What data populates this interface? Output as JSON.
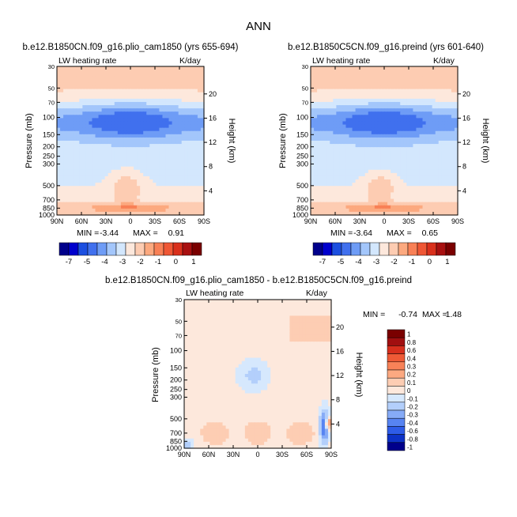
{
  "figure": {
    "title": "ANN"
  },
  "colors": {
    "abs_scale": [
      "#00008b",
      "#0000cd",
      "#1c4fe0",
      "#4070ee",
      "#6e9cf6",
      "#a3c6fb",
      "#d3e7fd",
      "#fde8dc",
      "#fdccb2",
      "#fca97f",
      "#f88056",
      "#ef5735",
      "#d9301c",
      "#a81010",
      "#7a0000"
    ],
    "diff_scale": [
      "#00008b",
      "#0d32c7",
      "#2e5ce8",
      "#5784f2",
      "#86abf7",
      "#b3cffb",
      "#d6e8fd",
      "#fde8dc",
      "#fdcdb3",
      "#fca981",
      "#f88258",
      "#ef5a36",
      "#d72f1d",
      "#a10f10",
      "#7a0000"
    ]
  },
  "chart_data": [
    {
      "type": "heatmap",
      "title": "b.e12.B1850CN.f09_g16.plio_cam1850 (yrs 655-694)",
      "variable_label": "LW heating rate",
      "units": "K/day",
      "ylabel": "Pressure (mb)",
      "y2label": "Height (km)",
      "x_ticks": [
        "90N",
        "60N",
        "30N",
        "0",
        "30S",
        "60S",
        "90S"
      ],
      "y_ticks": [
        "30",
        "50",
        "70",
        "100",
        "150",
        "200",
        "250",
        "300",
        "500",
        "700",
        "850",
        "1000"
      ],
      "y2_ticks": [
        "20",
        "16",
        "12",
        "8",
        "4"
      ],
      "min_label": "MIN =",
      "min_value": "-3.44",
      "max_label": "MAX =",
      "max_value": "0.91",
      "colorbar_labels": [
        "-7",
        "-5",
        "-4",
        "-3",
        "-2",
        "-1",
        "0",
        "1"
      ],
      "colorbar_orientation": "horizontal",
      "zlim": [
        -3.44,
        0.91
      ],
      "field_pattern": "absolute-lw-heating"
    },
    {
      "type": "heatmap",
      "title": "b.e12.B1850C5CN.f09_g16.preind (yrs 601-640)",
      "variable_label": "LW heating rate",
      "units": "K/day",
      "ylabel": "Pressure (mb)",
      "y2label": "Height (km)",
      "x_ticks": [
        "90N",
        "60N",
        "30N",
        "0",
        "30S",
        "60S",
        "90S"
      ],
      "y_ticks": [
        "30",
        "50",
        "70",
        "100",
        "150",
        "200",
        "250",
        "300",
        "500",
        "700",
        "850",
        "1000"
      ],
      "y2_ticks": [
        "20",
        "16",
        "12",
        "8",
        "4"
      ],
      "min_label": "MIN =",
      "min_value": "-3.64",
      "max_label": "MAX =",
      "max_value": "0.65",
      "colorbar_labels": [
        "-7",
        "-5",
        "-4",
        "-3",
        "-2",
        "-1",
        "0",
        "1"
      ],
      "colorbar_orientation": "horizontal",
      "zlim": [
        -3.64,
        0.65
      ],
      "field_pattern": "absolute-lw-heating"
    },
    {
      "type": "heatmap",
      "title": "b.e12.B1850CN.f09_g16.plio_cam1850 - b.e12.B1850C5CN.f09_g16.preind",
      "variable_label": "LW heating rate",
      "units": "K/day",
      "ylabel": "Pressure (mb)",
      "y2label": "Height (km)",
      "x_ticks": [
        "90N",
        "60N",
        "30N",
        "0",
        "30S",
        "60S",
        "90S"
      ],
      "y_ticks": [
        "30",
        "50",
        "70",
        "100",
        "150",
        "200",
        "250",
        "300",
        "500",
        "700",
        "850",
        "1000"
      ],
      "y2_ticks": [
        "20",
        "16",
        "12",
        "8",
        "4"
      ],
      "min_label": "MIN =",
      "min_value": "-0.74",
      "max_label": "MAX =",
      "max_value": "1.48",
      "colorbar_labels": [
        "1",
        "0.8",
        "0.6",
        "0.4",
        "0.3",
        "0.2",
        "0.1",
        "0",
        "-0.1",
        "-0.2",
        "-0.3",
        "-0.4",
        "-0.6",
        "-0.8",
        "-1"
      ],
      "colorbar_orientation": "vertical",
      "zlim": [
        -0.74,
        1.48
      ],
      "field_pattern": "difference"
    }
  ]
}
